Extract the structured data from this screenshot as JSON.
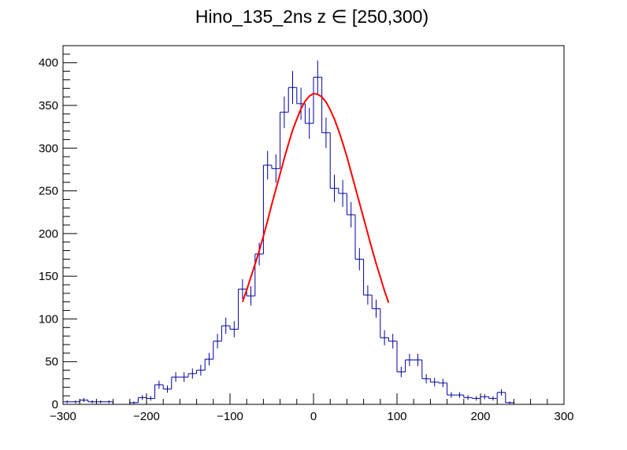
{
  "chart_data": {
    "type": "histogram",
    "title": "Hino_135_2ns z  ∈ [250,300)",
    "xlabel": "",
    "ylabel": "",
    "xlim": [
      -300,
      300
    ],
    "ylim": [
      0,
      420
    ],
    "bin_width": 10,
    "x_ticks": [
      -300,
      -200,
      -100,
      0,
      100,
      200,
      300
    ],
    "y_ticks": [
      0,
      50,
      100,
      150,
      200,
      250,
      300,
      350,
      400
    ],
    "grid": false,
    "legend": "none",
    "bins": {
      "x_low": [
        -300,
        -290,
        -280,
        -270,
        -260,
        -250,
        -240,
        -230,
        -220,
        -210,
        -200,
        -190,
        -180,
        -170,
        -160,
        -150,
        -140,
        -130,
        -120,
        -110,
        -100,
        -90,
        -80,
        -70,
        -60,
        -50,
        -40,
        -30,
        -20,
        -10,
        0,
        10,
        20,
        30,
        40,
        50,
        60,
        70,
        80,
        90,
        100,
        110,
        120,
        130,
        140,
        150,
        160,
        170,
        180,
        190,
        200,
        210,
        220,
        230,
        240,
        250,
        260,
        270,
        280,
        290
      ],
      "counts": [
        3,
        3,
        5,
        3,
        3,
        3,
        0,
        0,
        2,
        8,
        7,
        23,
        18,
        32,
        32,
        36,
        40,
        53,
        74,
        92,
        88,
        135,
        127,
        176,
        280,
        276,
        342,
        371,
        352,
        329,
        383,
        318,
        253,
        247,
        222,
        170,
        128,
        112,
        78,
        74,
        38,
        52,
        52,
        30,
        26,
        25,
        11,
        11,
        8,
        7,
        9,
        7,
        14,
        2,
        0,
        0,
        0,
        0,
        0,
        0
      ]
    },
    "series": [
      {
        "type": "histogram",
        "color": "#0000a0"
      },
      {
        "type": "fit",
        "color": "#ff0000",
        "x": [
          -85,
          -80,
          -75,
          -70,
          -65,
          -60,
          -55,
          -50,
          -45,
          -40,
          -35,
          -30,
          -25,
          -20,
          -15,
          -10,
          -5,
          0,
          5,
          10,
          15,
          20,
          25,
          30,
          35,
          40,
          45,
          50,
          55,
          60,
          65,
          70,
          75,
          80,
          85,
          90
        ],
        "values": [
          120,
          134,
          149,
          164,
          180,
          197,
          215,
          234,
          252,
          270,
          288,
          305,
          321,
          334,
          346,
          355,
          361,
          364,
          363,
          360,
          354,
          345,
          334,
          321,
          306,
          290,
          272,
          254,
          236,
          218,
          200,
          182,
          165,
          149,
          133,
          119
        ]
      }
    ],
    "colors": {
      "histogram": "#0000a0",
      "fit": "#ff0000",
      "axes": "#000000"
    }
  }
}
